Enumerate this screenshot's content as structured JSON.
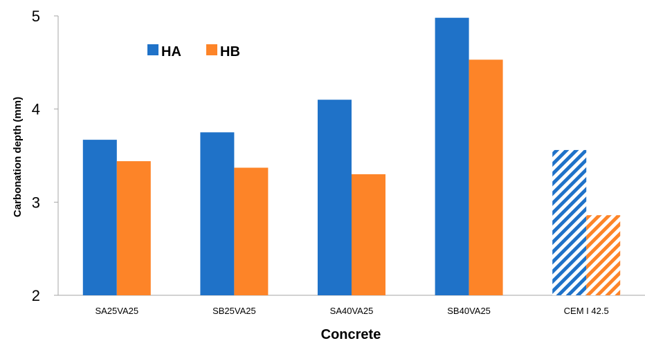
{
  "chart_data": {
    "type": "bar",
    "title": "",
    "xlabel": "Concrete",
    "ylabel": "Carbonation depth (mm)",
    "ylim": [
      2,
      5
    ],
    "yticks": [
      "2",
      "3",
      "4",
      "5"
    ],
    "categories": [
      "SA25VA25",
      "SB25VA25",
      "SA40VA25",
      "SB40VA25",
      "CEM I 42.5"
    ],
    "series": [
      {
        "name": "HA",
        "color": "#1f72c8",
        "values": [
          3.67,
          3.75,
          4.1,
          4.98,
          3.56
        ]
      },
      {
        "name": "HB",
        "color": "#fd8428",
        "values": [
          3.44,
          3.37,
          3.3,
          4.53,
          2.86
        ]
      }
    ],
    "hatched_categories": [
      "CEM I 42.5"
    ],
    "grid": false,
    "legend_position": "top-left"
  }
}
